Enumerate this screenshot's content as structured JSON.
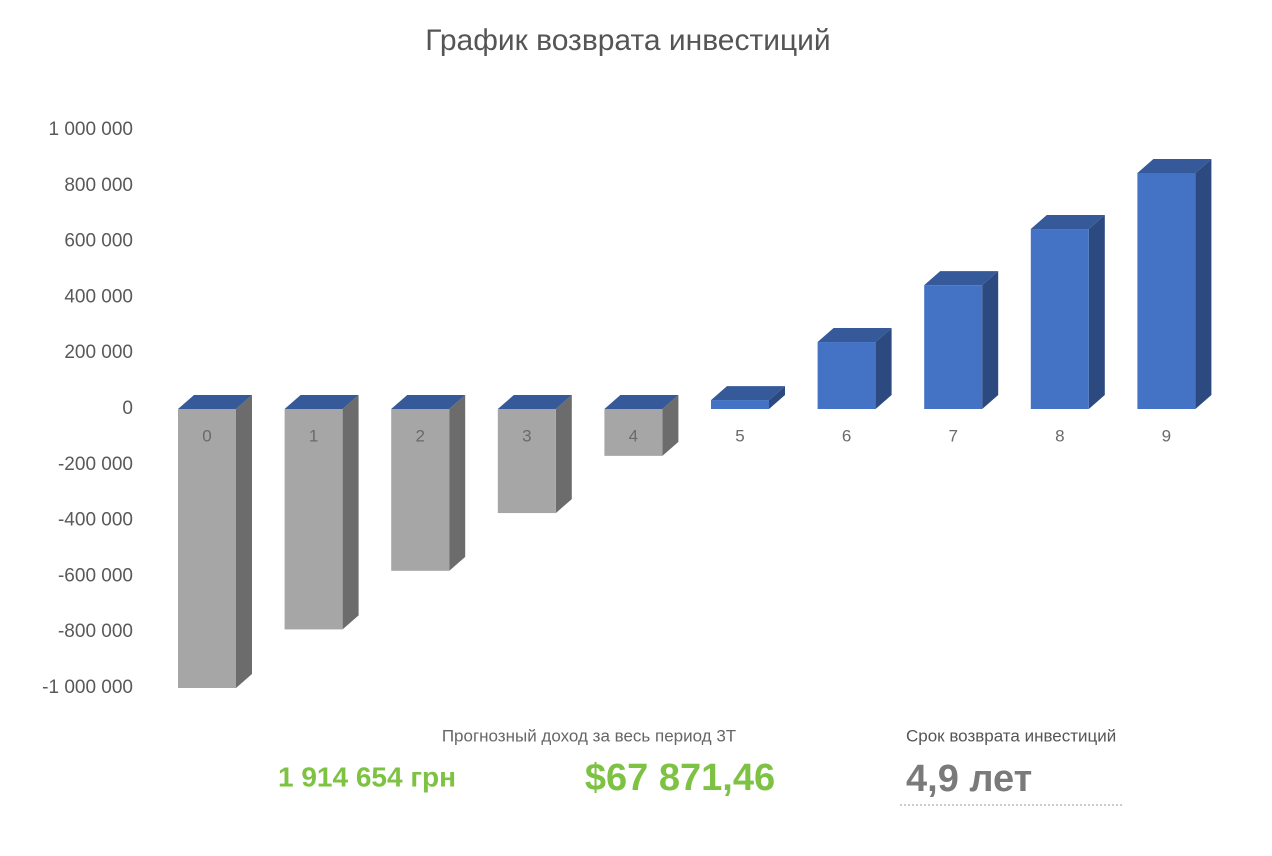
{
  "chart_data": {
    "type": "bar3d",
    "title": "График возврата инвестиций",
    "categories": [
      "0",
      "1",
      "2",
      "3",
      "4",
      "5",
      "6",
      "7",
      "8",
      "9"
    ],
    "values": [
      -1000000,
      -790000,
      -580000,
      -373000,
      -168000,
      32000,
      240000,
      444000,
      645000,
      846000
    ],
    "colors": {
      "positive": "#4472c4",
      "negative": "#a6a6a6"
    },
    "ylim": [
      -1000000,
      1000000
    ],
    "yticks": [
      {
        "value": 1000000,
        "label": "1 000 000"
      },
      {
        "value": 800000,
        "label": "800 000"
      },
      {
        "value": 600000,
        "label": "600 000"
      },
      {
        "value": 400000,
        "label": "400 000"
      },
      {
        "value": 200000,
        "label": "200 000"
      },
      0,
      {
        "value": -200000,
        "label": "-200 000"
      },
      {
        "value": -400000,
        "label": "-400 000"
      },
      {
        "value": -600000,
        "label": "-600 000"
      },
      {
        "value": -800000,
        "label": "-800 000"
      },
      {
        "value": -1000000,
        "label": "-1 000 000"
      }
    ],
    "grid": false
  },
  "summary": {
    "income_caption": "Прогнозный доход за весь период 3Т",
    "income_uah": "1 914 654 грн",
    "income_usd": "$67 871,46",
    "payback_caption": "Срок возврата инвестиций",
    "payback_value": "4,9 лет"
  }
}
